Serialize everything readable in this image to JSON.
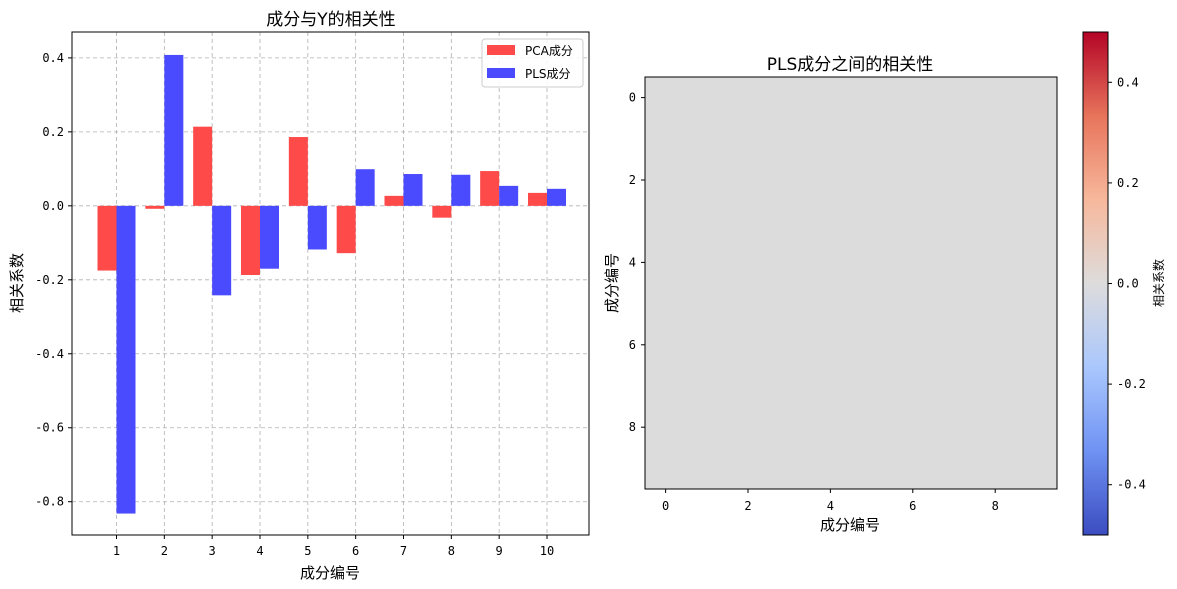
{
  "chart_data": [
    {
      "type": "bar",
      "title": "成分与Y的相关性",
      "xlabel": "成分编号",
      "ylabel": "相关系数",
      "categories": [
        "1",
        "2",
        "3",
        "4",
        "5",
        "6",
        "7",
        "8",
        "9",
        "10"
      ],
      "ylim": [
        -0.89,
        0.47
      ],
      "yticks": [
        -0.8,
        -0.6,
        -0.4,
        -0.2,
        0.0,
        0.2,
        0.4
      ],
      "ytick_labels": [
        "-0.8",
        "-0.6",
        "-0.4",
        "-0.2",
        "0.0",
        "0.2",
        "0.4"
      ],
      "grid": true,
      "legend_position": "top-right",
      "series": [
        {
          "name": "PCA成分",
          "color": "#ff4a4a",
          "values": [
            -0.175,
            -0.008,
            0.214,
            -0.187,
            0.186,
            -0.128,
            0.027,
            -0.032,
            0.094,
            0.035
          ]
        },
        {
          "name": "PLS成分",
          "color": "#4a4aff",
          "values": [
            -0.832,
            0.408,
            -0.242,
            -0.17,
            -0.118,
            0.099,
            0.086,
            0.084,
            0.054,
            0.046
          ]
        }
      ]
    },
    {
      "type": "heatmap",
      "title": "PLS成分之间的相关性",
      "xlabel": "成分编号",
      "ylabel": "成分编号",
      "size": [
        10,
        10
      ],
      "fill_value": 0.0,
      "fill_color": "#dddcdc",
      "xticks": [
        0,
        2,
        4,
        6,
        8
      ],
      "yticks": [
        0,
        2,
        4,
        6,
        8
      ],
      "colorbar": {
        "label": "相关系数",
        "range": [
          -0.5,
          0.5
        ],
        "ticks": [
          -0.4,
          -0.2,
          0.0,
          0.2,
          0.4
        ],
        "tick_labels": [
          "-0.4",
          "-0.2",
          "0.0",
          "0.2",
          "0.4"
        ],
        "colormap": "coolwarm",
        "stops": [
          "#3b4cc0",
          "#6f92f3",
          "#aac7fd",
          "#dddcdc",
          "#f7b89c",
          "#e7745b",
          "#b40426"
        ]
      }
    }
  ]
}
